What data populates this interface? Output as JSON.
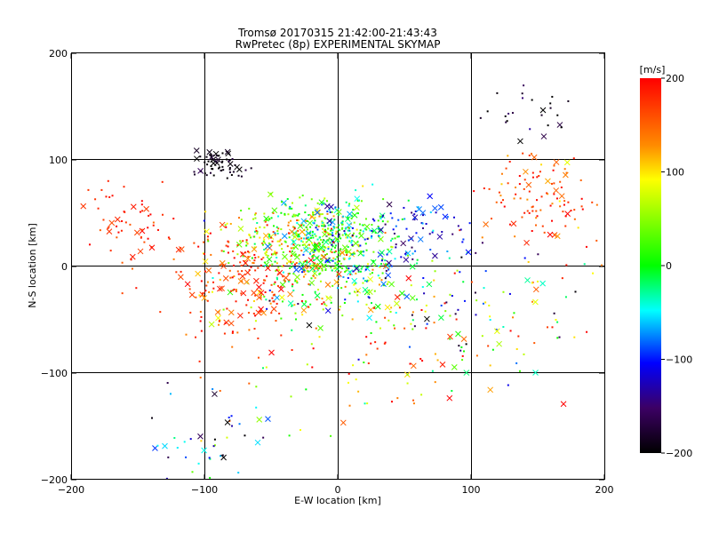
{
  "chart_data": {
    "type": "scatter",
    "title": "Tromsø 20170315 21:42:00-21:43:43",
    "subtitle": "RwPretec (8p) EXPERIMENTAL SKYMAP",
    "xlabel": "E-W location [km]",
    "ylabel": "N-S location [km]",
    "xlim": [
      -200,
      200
    ],
    "ylim": [
      -200,
      200
    ],
    "x_ticks": [
      "−200",
      "−100",
      "0",
      "100",
      "200"
    ],
    "y_ticks": [
      "−200",
      "−100",
      "0",
      "100",
      "200"
    ],
    "grid": true,
    "colorbar": {
      "label": "[m/s]",
      "range": [
        -200,
        200
      ],
      "ticks": [
        "200",
        "100",
        "0",
        "−100",
        "−200"
      ],
      "colors": [
        "#ff0000",
        "#ff8800",
        "#ffff00",
        "#00ff00",
        "#00ffff",
        "#0000ff",
        "#400060",
        "#000000"
      ]
    },
    "marker_types": [
      "small dots",
      "crosses"
    ],
    "clusters": [
      {
        "x": -40,
        "y": 25,
        "sx": 25,
        "sy": 18,
        "v": 80,
        "sv": 70,
        "n": 260
      },
      {
        "x": 0,
        "y": 25,
        "sx": 22,
        "sy": 22,
        "v": 0,
        "sv": 55,
        "n": 380
      },
      {
        "x": -10,
        "y": -15,
        "sx": 35,
        "sy": 22,
        "v": 50,
        "sv": 80,
        "n": 180
      },
      {
        "x": -70,
        "y": -15,
        "sx": 28,
        "sy": 25,
        "v": 170,
        "sv": 30,
        "n": 180
      },
      {
        "x": -90,
        "y": 95,
        "sx": 10,
        "sy": 8,
        "v": -190,
        "sv": 20,
        "n": 60
      },
      {
        "x": -160,
        "y": 35,
        "sx": 18,
        "sy": 22,
        "v": 180,
        "sv": 20,
        "n": 60
      },
      {
        "x": 150,
        "y": 65,
        "sx": 20,
        "sy": 22,
        "v": 165,
        "sv": 30,
        "n": 110
      },
      {
        "x": 140,
        "y": 140,
        "sx": 20,
        "sy": 15,
        "v": -190,
        "sv": 20,
        "n": 25
      },
      {
        "x": 110,
        "y": -40,
        "sx": 45,
        "sy": 30,
        "v": 0,
        "sv": 120,
        "n": 120
      },
      {
        "x": 50,
        "y": 30,
        "sx": 25,
        "sy": 18,
        "v": -110,
        "sv": 30,
        "n": 90
      },
      {
        "x": -100,
        "y": -170,
        "sx": 22,
        "sy": 18,
        "v": -60,
        "sv": 70,
        "n": 35
      },
      {
        "x": -60,
        "y": -110,
        "sx": 35,
        "sy": 30,
        "v": 60,
        "sv": 130,
        "n": 30
      },
      {
        "x": 40,
        "y": -90,
        "sx": 35,
        "sy": 25,
        "v": 140,
        "sv": 60,
        "n": 45
      }
    ]
  }
}
